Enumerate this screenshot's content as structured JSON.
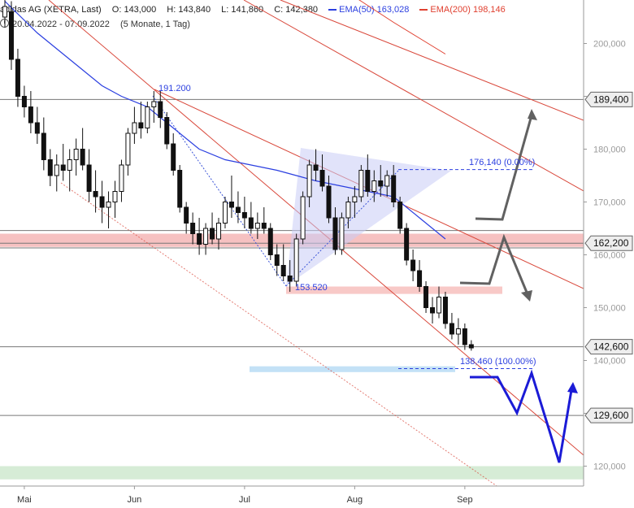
{
  "header": {
    "instrument": "adidas AG (XETRA, Last)",
    "ohlc": {
      "open": "O: 143,000",
      "high": "H: 143,840",
      "low": "L: 141,860",
      "close": "C: 142,380"
    },
    "ema50": {
      "label": "EMA(50)",
      "value": "163,028",
      "color": "#2b3fe0"
    },
    "ema200": {
      "label": "EMA(200)",
      "value": "198,146",
      "color": "#e04030"
    },
    "range": "20.04.2022 - 07.09.2022",
    "period": "(5 Monate, 1 Tag)"
  },
  "chart_data": {
    "type": "candlestick",
    "ylim": [
      113,
      210
    ],
    "yticks": [
      120000,
      130000,
      140000,
      150000,
      160000,
      170000,
      180000,
      190000,
      200000
    ],
    "ytick_labels": [
      "120,000",
      "130,000",
      "140,000",
      "150,000",
      "160,000",
      "170,000",
      "180,000",
      "190,000",
      "200,000"
    ],
    "xticks": [
      {
        "label": "Mai",
        "x": 3
      },
      {
        "label": "Jun",
        "x": 20
      },
      {
        "label": "Jul",
        "x": 37
      },
      {
        "label": "Aug",
        "x": 54
      },
      {
        "label": "Sep",
        "x": 71
      }
    ],
    "candles": [
      {
        "x": 0,
        "o": 205,
        "h": 209,
        "l": 203,
        "c": 207
      },
      {
        "x": 1,
        "o": 206,
        "h": 208,
        "l": 195,
        "c": 197
      },
      {
        "x": 2,
        "o": 197,
        "h": 199,
        "l": 188,
        "c": 190
      },
      {
        "x": 3,
        "o": 190,
        "h": 192,
        "l": 186,
        "c": 188
      },
      {
        "x": 4,
        "o": 188,
        "h": 191,
        "l": 183,
        "c": 185
      },
      {
        "x": 5,
        "o": 185,
        "h": 188,
        "l": 181,
        "c": 183
      },
      {
        "x": 6,
        "o": 183,
        "h": 186,
        "l": 176,
        "c": 178
      },
      {
        "x": 7,
        "o": 178,
        "h": 180,
        "l": 173,
        "c": 175
      },
      {
        "x": 8,
        "o": 175,
        "h": 179,
        "l": 172,
        "c": 177
      },
      {
        "x": 9,
        "o": 177,
        "h": 181,
        "l": 174,
        "c": 176
      },
      {
        "x": 10,
        "o": 176,
        "h": 180,
        "l": 172,
        "c": 178
      },
      {
        "x": 11,
        "o": 178,
        "h": 182,
        "l": 175,
        "c": 180
      },
      {
        "x": 12,
        "o": 180,
        "h": 184,
        "l": 176,
        "c": 177
      },
      {
        "x": 13,
        "o": 177,
        "h": 180,
        "l": 170,
        "c": 172
      },
      {
        "x": 14,
        "o": 172,
        "h": 176,
        "l": 168,
        "c": 171
      },
      {
        "x": 15,
        "o": 171,
        "h": 174,
        "l": 166,
        "c": 169
      },
      {
        "x": 16,
        "o": 169,
        "h": 172,
        "l": 165,
        "c": 170
      },
      {
        "x": 17,
        "o": 170,
        "h": 174,
        "l": 167,
        "c": 172
      },
      {
        "x": 18,
        "o": 172,
        "h": 178,
        "l": 170,
        "c": 177
      },
      {
        "x": 19,
        "o": 177,
        "h": 184,
        "l": 175,
        "c": 183
      },
      {
        "x": 20,
        "o": 183,
        "h": 188,
        "l": 181,
        "c": 185
      },
      {
        "x": 21,
        "o": 185,
        "h": 189,
        "l": 182,
        "c": 184
      },
      {
        "x": 22,
        "o": 184,
        "h": 189,
        "l": 183,
        "c": 188
      },
      {
        "x": 23,
        "o": 188,
        "h": 191,
        "l": 185,
        "c": 189
      },
      {
        "x": 24,
        "o": 189,
        "h": 191,
        "l": 184,
        "c": 186
      },
      {
        "x": 25,
        "o": 186,
        "h": 187,
        "l": 180,
        "c": 181
      },
      {
        "x": 26,
        "o": 181,
        "h": 183,
        "l": 175,
        "c": 176
      },
      {
        "x": 27,
        "o": 176,
        "h": 177,
        "l": 168,
        "c": 169
      },
      {
        "x": 28,
        "o": 169,
        "h": 170,
        "l": 164,
        "c": 166
      },
      {
        "x": 29,
        "o": 166,
        "h": 168,
        "l": 162,
        "c": 164
      },
      {
        "x": 30,
        "o": 164,
        "h": 167,
        "l": 160,
        "c": 162
      },
      {
        "x": 31,
        "o": 162,
        "h": 166,
        "l": 160,
        "c": 165
      },
      {
        "x": 32,
        "o": 165,
        "h": 168,
        "l": 162,
        "c": 163
      },
      {
        "x": 33,
        "o": 163,
        "h": 167,
        "l": 161,
        "c": 166
      },
      {
        "x": 34,
        "o": 166,
        "h": 171,
        "l": 165,
        "c": 170
      },
      {
        "x": 35,
        "o": 170,
        "h": 175,
        "l": 167,
        "c": 169
      },
      {
        "x": 36,
        "o": 169,
        "h": 172,
        "l": 166,
        "c": 168
      },
      {
        "x": 37,
        "o": 168,
        "h": 171,
        "l": 165,
        "c": 167
      },
      {
        "x": 38,
        "o": 167,
        "h": 170,
        "l": 164,
        "c": 165
      },
      {
        "x": 39,
        "o": 165,
        "h": 168,
        "l": 163,
        "c": 166
      },
      {
        "x": 40,
        "o": 166,
        "h": 169,
        "l": 164,
        "c": 165
      },
      {
        "x": 41,
        "o": 165,
        "h": 166,
        "l": 159,
        "c": 160
      },
      {
        "x": 42,
        "o": 160,
        "h": 162,
        "l": 156,
        "c": 158
      },
      {
        "x": 43,
        "o": 158,
        "h": 162,
        "l": 155,
        "c": 156
      },
      {
        "x": 44,
        "o": 156,
        "h": 159,
        "l": 153,
        "c": 155
      },
      {
        "x": 45,
        "o": 155,
        "h": 164,
        "l": 154,
        "c": 163
      },
      {
        "x": 46,
        "o": 163,
        "h": 172,
        "l": 162,
        "c": 171
      },
      {
        "x": 47,
        "o": 171,
        "h": 178,
        "l": 169,
        "c": 177
      },
      {
        "x": 48,
        "o": 177,
        "h": 180,
        "l": 174,
        "c": 176
      },
      {
        "x": 49,
        "o": 176,
        "h": 179,
        "l": 172,
        "c": 173
      },
      {
        "x": 50,
        "o": 173,
        "h": 175,
        "l": 166,
        "c": 167
      },
      {
        "x": 51,
        "o": 167,
        "h": 169,
        "l": 160,
        "c": 161
      },
      {
        "x": 52,
        "o": 161,
        "h": 168,
        "l": 160,
        "c": 167
      },
      {
        "x": 53,
        "o": 167,
        "h": 171,
        "l": 165,
        "c": 170
      },
      {
        "x": 54,
        "o": 170,
        "h": 173,
        "l": 167,
        "c": 171
      },
      {
        "x": 55,
        "o": 171,
        "h": 177,
        "l": 170,
        "c": 176
      },
      {
        "x": 56,
        "o": 176,
        "h": 179,
        "l": 171,
        "c": 172
      },
      {
        "x": 57,
        "o": 172,
        "h": 176,
        "l": 170,
        "c": 174
      },
      {
        "x": 58,
        "o": 174,
        "h": 177,
        "l": 171,
        "c": 173
      },
      {
        "x": 59,
        "o": 173,
        "h": 176,
        "l": 171,
        "c": 175
      },
      {
        "x": 60,
        "o": 175,
        "h": 177,
        "l": 169,
        "c": 170
      },
      {
        "x": 61,
        "o": 170,
        "h": 171,
        "l": 164,
        "c": 165
      },
      {
        "x": 62,
        "o": 165,
        "h": 166,
        "l": 158,
        "c": 159
      },
      {
        "x": 63,
        "o": 159,
        "h": 161,
        "l": 155,
        "c": 157
      },
      {
        "x": 64,
        "o": 157,
        "h": 159,
        "l": 153,
        "c": 154
      },
      {
        "x": 65,
        "o": 154,
        "h": 155,
        "l": 149,
        "c": 150
      },
      {
        "x": 66,
        "o": 150,
        "h": 152,
        "l": 147,
        "c": 149
      },
      {
        "x": 67,
        "o": 149,
        "h": 154,
        "l": 148,
        "c": 152
      },
      {
        "x": 68,
        "o": 152,
        "h": 153,
        "l": 146,
        "c": 147
      },
      {
        "x": 69,
        "o": 147,
        "h": 149,
        "l": 144,
        "c": 145
      },
      {
        "x": 70,
        "o": 145,
        "h": 148,
        "l": 143,
        "c": 146
      },
      {
        "x": 71,
        "o": 146,
        "h": 147,
        "l": 142,
        "c": 143
      },
      {
        "x": 72,
        "o": 143,
        "h": 143.84,
        "l": 141.86,
        "c": 142.38
      }
    ],
    "ema50": [
      [
        0,
        208
      ],
      [
        5,
        202
      ],
      [
        10,
        197
      ],
      [
        15,
        192
      ],
      [
        18,
        190
      ],
      [
        22,
        188
      ],
      [
        26,
        184
      ],
      [
        30,
        180
      ],
      [
        34,
        178
      ],
      [
        38,
        177
      ],
      [
        42,
        176
      ],
      [
        45,
        175
      ],
      [
        48,
        174
      ],
      [
        52,
        173
      ],
      [
        56,
        172
      ],
      [
        60,
        171
      ],
      [
        62,
        169
      ],
      [
        64,
        167
      ],
      [
        66,
        165
      ],
      [
        68,
        163
      ]
    ],
    "ema200_segment": [
      [
        50,
        212
      ],
      [
        55,
        208
      ],
      [
        60,
        204
      ],
      [
        64,
        201
      ],
      [
        68,
        198
      ]
    ],
    "horizontal_lines": [
      {
        "name": "level-189400",
        "value": 189.4,
        "label": "189,400"
      },
      {
        "name": "level-162200",
        "value": 162.2,
        "label": "162,200"
      },
      {
        "name": "level-142600",
        "value": 142.6,
        "label": "142,600"
      },
      {
        "name": "level-129600",
        "value": 129.6,
        "label": "129,600"
      }
    ],
    "annotations": [
      {
        "name": "label-191200",
        "text": "191.200"
      },
      {
        "name": "label-153520",
        "text": "153.520"
      },
      {
        "name": "label-176140",
        "text": "176,140 (0.00%)"
      },
      {
        "name": "label-138460",
        "text": "138,460 (100.00%)"
      }
    ],
    "zones": [
      {
        "name": "resistance-zone-162200",
        "from": 161.5,
        "to": 164.0,
        "color": "#f4b6b6"
      },
      {
        "name": "zone-153520",
        "from": 152.6,
        "to": 154.0,
        "color": "#f7c0bd"
      },
      {
        "name": "support-zone-138460",
        "from": 137.8,
        "to": 138.9,
        "color": "#b8dcf4"
      },
      {
        "name": "support-zone-120000",
        "from": 117.5,
        "to": 120.0,
        "color": "#cfe9cf"
      }
    ],
    "colors": {
      "channel": "#d9483b",
      "ema50": "#2b3fe0",
      "ema200": "#e04030",
      "triangle": "#c8ccf6",
      "scenario_up": "#616161",
      "scenario_down": "#1b1bd6"
    }
  }
}
